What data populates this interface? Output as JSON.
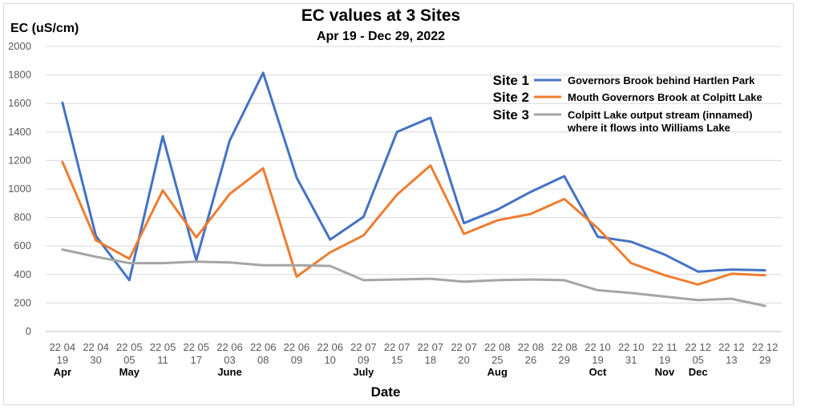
{
  "chart_data": {
    "type": "line",
    "title": "EC values at 3 Sites",
    "subtitle": "Apr 19 - Dec 29, 2022",
    "ylabel": "EC (uS/cm)",
    "xlabel": "Date",
    "ylim": [
      0,
      2000
    ],
    "yticks": [
      "0",
      "200",
      "400",
      "600",
      "800",
      "1000",
      "1200",
      "1400",
      "1600",
      "1800",
      "2000"
    ],
    "grid": true,
    "legend_position": "top-right",
    "categories": [
      [
        "22 04",
        "19"
      ],
      [
        "22 04",
        "30"
      ],
      [
        "22 05",
        "05"
      ],
      [
        "22 05",
        "11"
      ],
      [
        "22 05",
        "17"
      ],
      [
        "22 06",
        "03"
      ],
      [
        "22 06",
        "08"
      ],
      [
        "22 06",
        "09"
      ],
      [
        "22 06",
        "10"
      ],
      [
        "22 07",
        "09"
      ],
      [
        "22 07",
        "15"
      ],
      [
        "22 07",
        "18"
      ],
      [
        "22 07",
        "20"
      ],
      [
        "22 08",
        "25"
      ],
      [
        "22 08",
        "26"
      ],
      [
        "22 08",
        "29"
      ],
      [
        "22 10",
        "19"
      ],
      [
        "22 10",
        "31"
      ],
      [
        "22 11",
        "19"
      ],
      [
        "22 12",
        "05"
      ],
      [
        "22 12",
        "13"
      ],
      [
        "22 12",
        "29"
      ]
    ],
    "months": [
      {
        "label": "Apr",
        "index": 0
      },
      {
        "label": "May",
        "index": 2
      },
      {
        "label": "June",
        "index": 5
      },
      {
        "label": "July",
        "index": 9
      },
      {
        "label": "Aug",
        "index": 13
      },
      {
        "label": "Oct",
        "index": 16
      },
      {
        "label": "Nov",
        "index": 18
      },
      {
        "label": "Dec",
        "index": 19
      }
    ],
    "series": [
      {
        "site": "Site 1",
        "name": [
          "Governors Brook behind Hartlen Park"
        ],
        "color": "#4472c4",
        "values": [
          1605,
          670,
          360,
          1370,
          500,
          1340,
          1815,
          1080,
          645,
          805,
          1400,
          1500,
          760,
          855,
          980,
          1090,
          665,
          630,
          540,
          420,
          435,
          430
        ]
      },
      {
        "site": "Site 2",
        "name": [
          "Mouth Governors Brook at Colpitt Lake"
        ],
        "color": "#ed7d31",
        "values": [
          1190,
          640,
          510,
          990,
          660,
          965,
          1145,
          385,
          555,
          675,
          960,
          1165,
          685,
          780,
          825,
          930,
          725,
          480,
          395,
          330,
          405,
          395
        ]
      },
      {
        "site": "Site 3",
        "name": [
          "Colpitt Lake output stream (innamed)",
          "where it flows into Williams Lake"
        ],
        "color": "#a5a5a5",
        "values": [
          575,
          525,
          480,
          480,
          490,
          485,
          465,
          465,
          460,
          360,
          365,
          370,
          350,
          360,
          365,
          360,
          290,
          270,
          245,
          220,
          230,
          180
        ]
      }
    ]
  }
}
